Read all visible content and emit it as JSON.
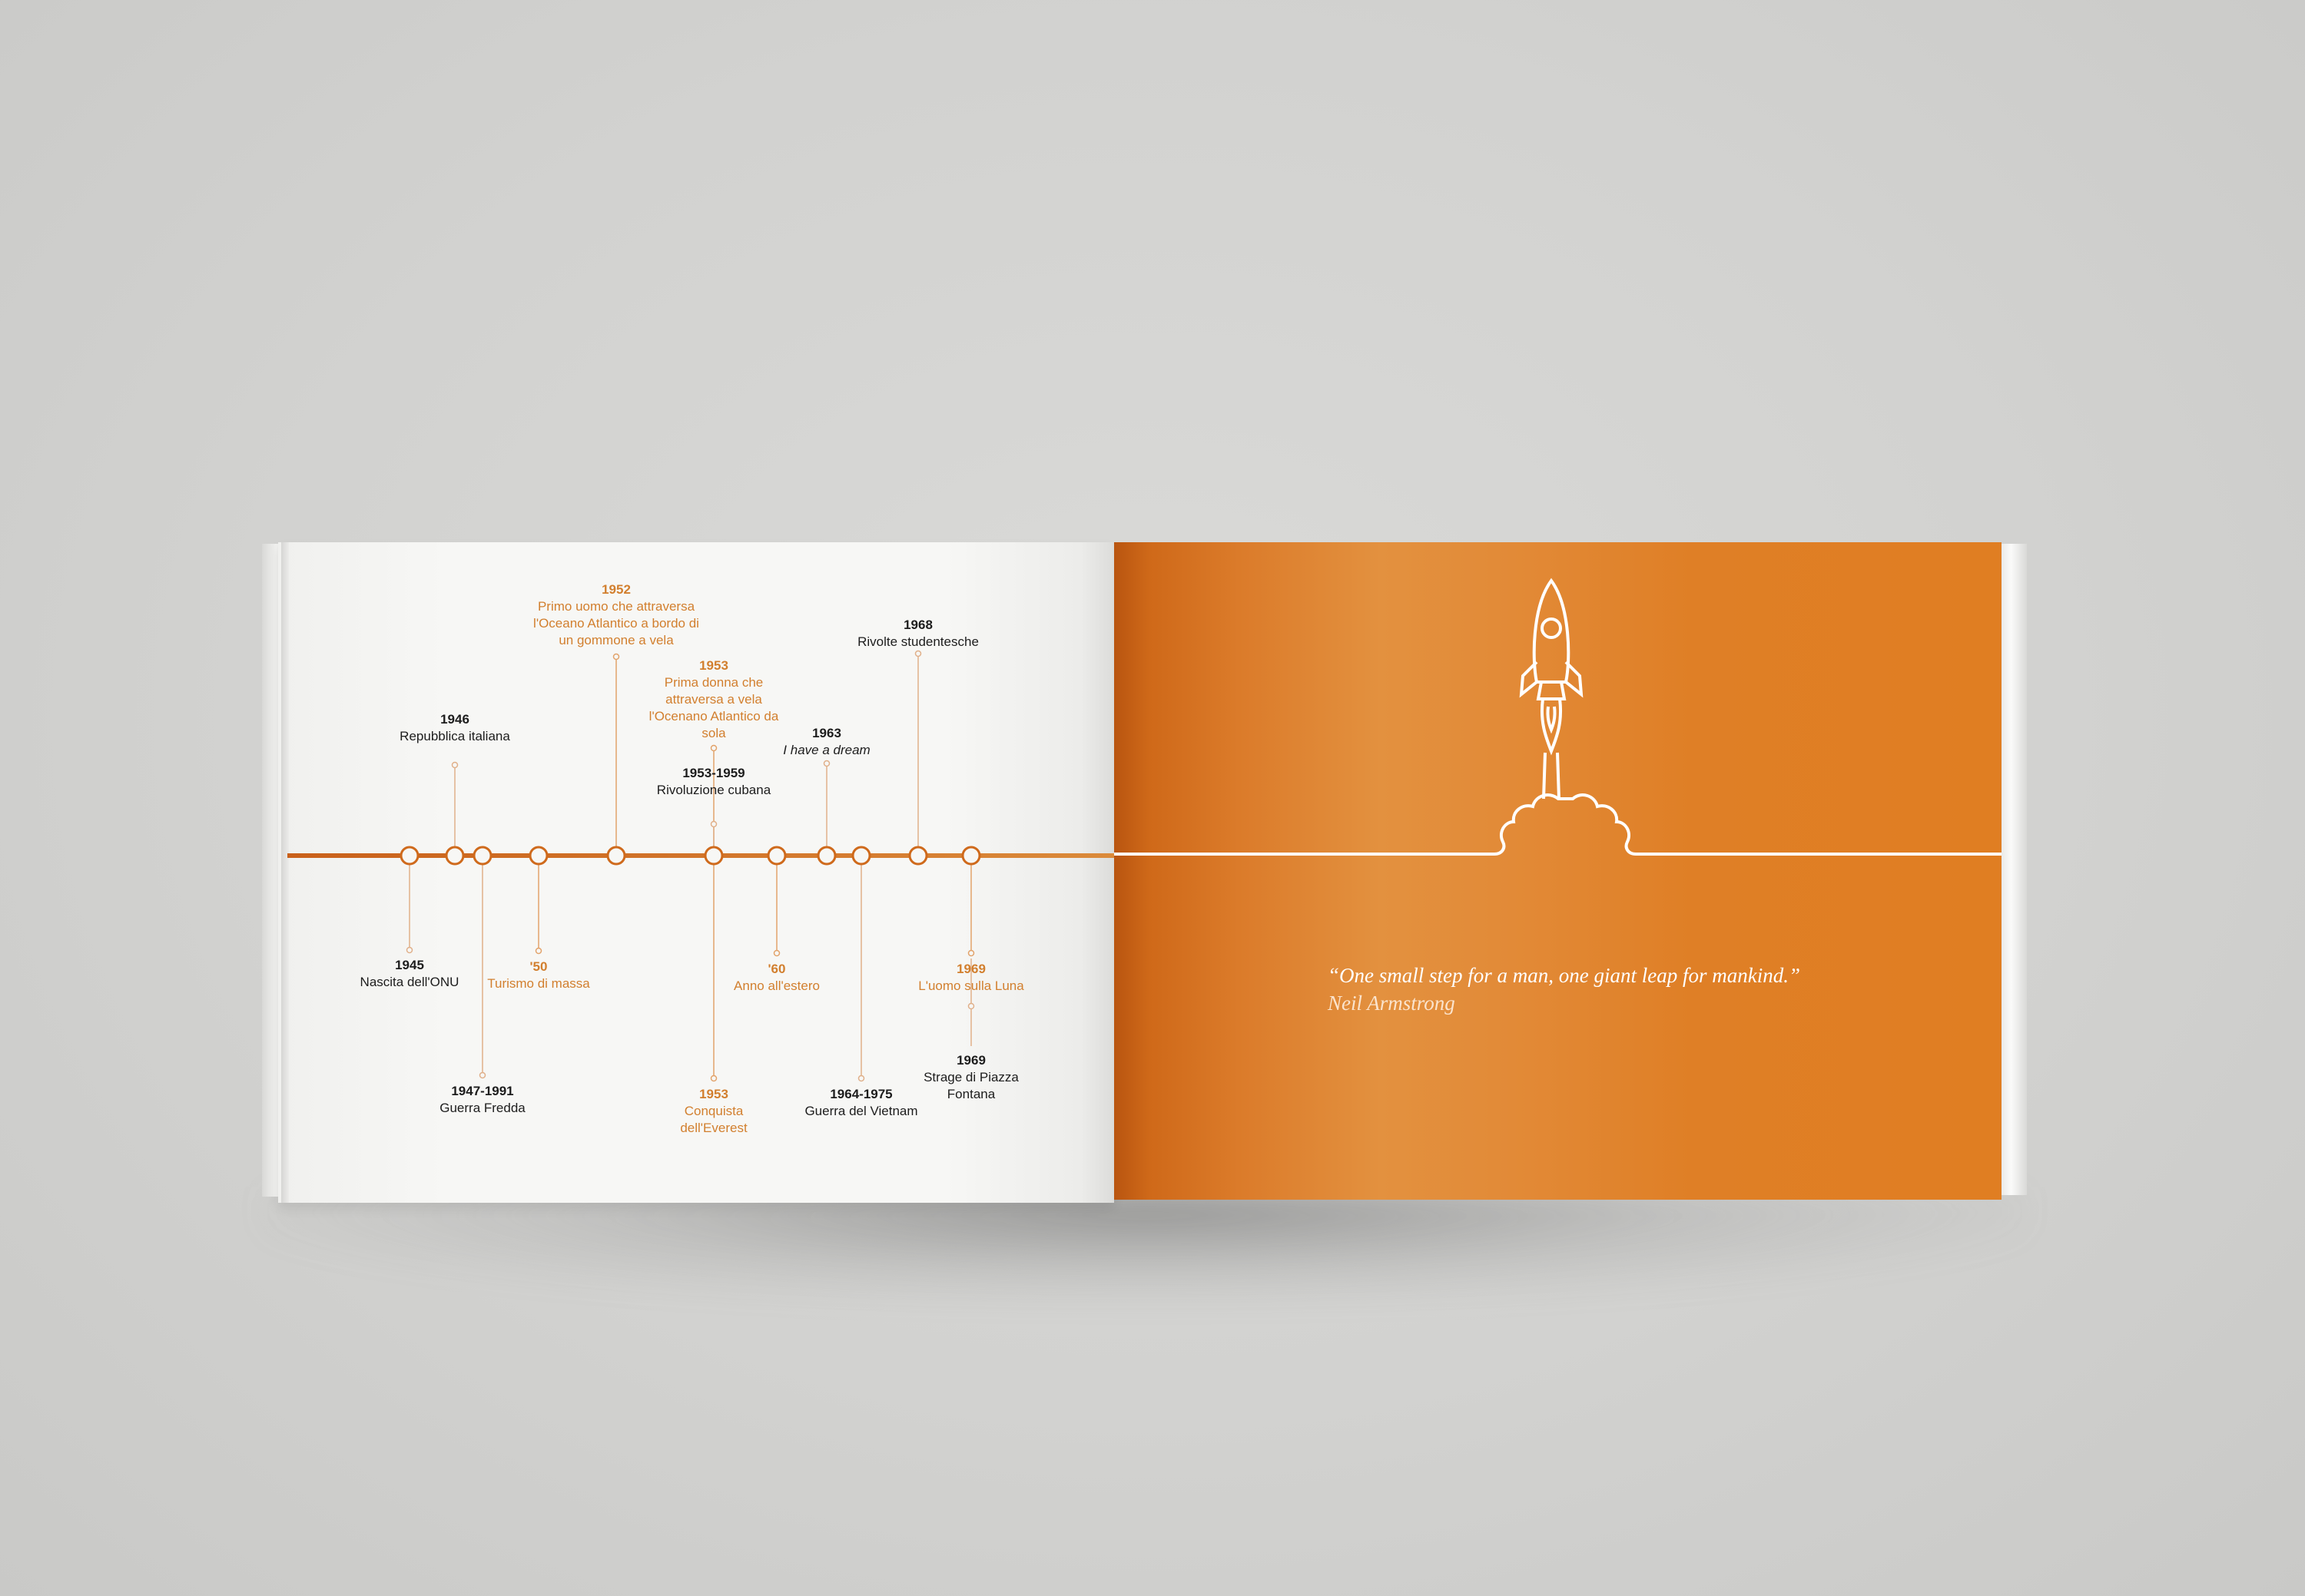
{
  "colors": {
    "background": "#d2d2d0",
    "page_white": "#f7f7f5",
    "accent_orange": "#d97a26",
    "timeline_line": "#cf6a1c",
    "text_dark": "#1d1d1d",
    "text_orange": "#d27f2e"
  },
  "timeline": {
    "events": [
      {
        "id": "e1945",
        "year": "1945",
        "label": "Nascita dell'ONU",
        "color": "dark",
        "side": "below"
      },
      {
        "id": "e1946",
        "year": "1946",
        "label": "Repubblica italiana",
        "color": "dark",
        "side": "above"
      },
      {
        "id": "e1947",
        "year": "1947-1991",
        "label": "Guerra Fredda",
        "color": "dark",
        "side": "below"
      },
      {
        "id": "e50",
        "year": "'50",
        "label": "Turismo di massa",
        "color": "orange",
        "side": "below"
      },
      {
        "id": "e1952",
        "year": "1952",
        "label": "Primo uomo che attraversa l'Oceano Atlantico a bordo di un gommone a vela",
        "color": "orange",
        "side": "above"
      },
      {
        "id": "e1953w",
        "year": "1953",
        "label": "Prima donna che attraversa a vela l'Ocenano Atlantico da sola",
        "color": "orange",
        "side": "above"
      },
      {
        "id": "e1953c",
        "year": "1953-1959",
        "label": "Rivoluzione cubana",
        "color": "dark",
        "side": "above"
      },
      {
        "id": "e1953e",
        "year": "1953",
        "label": "Conquista dell'Everest",
        "color": "orange",
        "side": "below"
      },
      {
        "id": "e60",
        "year": "'60",
        "label": "Anno all'estero",
        "color": "orange",
        "side": "below"
      },
      {
        "id": "e1963",
        "year": "1963",
        "label": "I have a dream",
        "color": "dark",
        "side": "above"
      },
      {
        "id": "e1964",
        "year": "1964-1975",
        "label": "Guerra del Vietnam",
        "color": "dark",
        "side": "below"
      },
      {
        "id": "e1968",
        "year": "1968",
        "label": "Rivolte studentesche",
        "color": "dark",
        "side": "above"
      },
      {
        "id": "e1969m",
        "year": "1969",
        "label": "L'uomo sulla Luna",
        "color": "orange",
        "side": "below"
      },
      {
        "id": "e1969f",
        "year": "1969",
        "label": "Strage di Piazza Fontana",
        "color": "dark",
        "side": "below"
      }
    ]
  },
  "quote": {
    "text": "“One small step for a man, one giant leap for mankind.”",
    "author": "Neil Armstrong"
  },
  "illustration": {
    "icon": "rocket-launch-icon"
  }
}
